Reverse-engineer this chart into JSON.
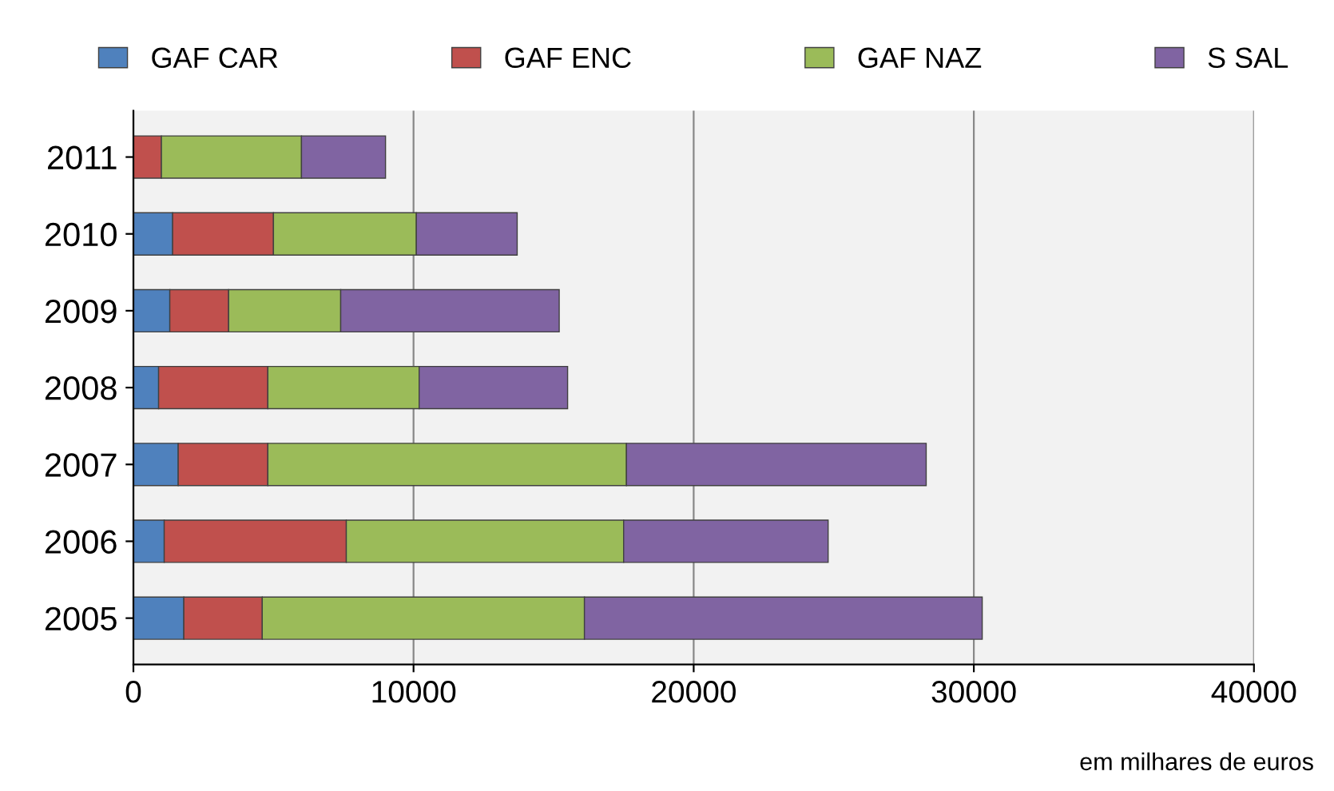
{
  "chart_data": {
    "type": "bar",
    "orientation": "horizontal",
    "stacked": true,
    "categories": [
      "2011",
      "2010",
      "2009",
      "2008",
      "2007",
      "2006",
      "2005"
    ],
    "series": [
      {
        "name": "GAF CAR",
        "color": "#4f81bd",
        "values": [
          0,
          1400,
          1300,
          900,
          1600,
          1100,
          1800
        ]
      },
      {
        "name": "GAF ENC",
        "color": "#c0504d",
        "values": [
          1000,
          3600,
          2100,
          3900,
          3200,
          6500,
          2800
        ]
      },
      {
        "name": "GAF NAZ",
        "color": "#9bbb59",
        "values": [
          5000,
          5100,
          4000,
          5400,
          12800,
          9900,
          11500
        ]
      },
      {
        "name": "S SAL",
        "color": "#8064a2",
        "values": [
          3000,
          3600,
          7800,
          5300,
          10700,
          7300,
          14200
        ]
      }
    ],
    "xlim": [
      0,
      40000
    ],
    "xticks": [
      0,
      10000,
      20000,
      30000,
      40000
    ],
    "grid": "x",
    "legend": "top",
    "annotations": [
      "em milhares de euros"
    ]
  }
}
